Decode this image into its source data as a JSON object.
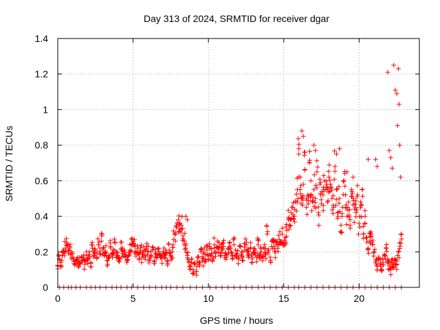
{
  "chart_data": {
    "type": "scatter",
    "title": "Day 313 of 2024, SRMTID for receiver dgar",
    "xlabel": "GPS time / hours",
    "ylabel": "SRMTID / TECUs",
    "xlim": [
      0,
      24
    ],
    "ylim": [
      0,
      1.4
    ],
    "grid": true,
    "marker": "+",
    "series": [
      {
        "name": "SRMTID",
        "color": "#ff0000",
        "note": "Points are sampled roughly every 0.1 h; values traced from the plot envelope. Many additional points lie along y = 0.",
        "x": [
          0.0,
          0.1,
          0.2,
          0.3,
          0.4,
          0.5,
          0.6,
          0.7,
          0.8,
          0.9,
          1.0,
          1.1,
          1.2,
          1.3,
          1.4,
          1.5,
          1.6,
          1.7,
          1.8,
          1.9,
          2.0,
          2.1,
          2.2,
          2.3,
          2.4,
          2.5,
          2.6,
          2.7,
          2.8,
          2.9,
          3.0,
          3.1,
          3.2,
          3.3,
          3.4,
          3.5,
          3.6,
          3.7,
          3.8,
          3.9,
          4.0,
          4.1,
          4.2,
          4.3,
          4.4,
          4.5,
          4.6,
          4.7,
          4.8,
          4.9,
          5.0,
          5.1,
          5.2,
          5.3,
          5.4,
          5.5,
          5.6,
          5.7,
          5.8,
          5.9,
          6.0,
          6.1,
          6.2,
          6.3,
          6.4,
          6.5,
          6.6,
          6.7,
          6.8,
          6.9,
          7.0,
          7.1,
          7.2,
          7.3,
          7.4,
          7.5,
          7.6,
          7.7,
          7.8,
          7.9,
          8.0,
          8.1,
          8.2,
          8.3,
          8.4,
          8.5,
          8.6,
          8.7,
          8.8,
          8.9,
          9.0,
          9.1,
          9.2,
          9.3,
          9.4,
          9.5,
          9.6,
          9.7,
          9.8,
          9.9,
          10.0,
          10.1,
          10.2,
          10.3,
          10.4,
          10.5,
          10.6,
          10.7,
          10.8,
          10.9,
          11.0,
          11.1,
          11.2,
          11.3,
          11.4,
          11.5,
          11.6,
          11.7,
          11.8,
          11.9,
          12.0,
          12.1,
          12.2,
          12.3,
          12.4,
          12.5,
          12.6,
          12.7,
          12.8,
          12.9,
          13.0,
          13.1,
          13.2,
          13.3,
          13.4,
          13.5,
          13.6,
          13.7,
          13.8,
          13.9,
          14.0,
          14.1,
          14.2,
          14.3,
          14.4,
          14.5,
          14.6,
          14.7,
          14.8,
          14.9,
          15.0,
          15.1,
          15.2,
          15.3,
          15.4,
          15.5,
          15.6,
          15.7,
          15.8,
          15.9,
          16.0,
          16.1,
          16.2,
          16.3,
          16.4,
          16.5,
          16.6,
          16.7,
          16.8,
          16.9,
          17.0,
          17.1,
          17.2,
          17.3,
          17.4,
          17.5,
          17.6,
          17.7,
          17.8,
          17.9,
          18.0,
          18.1,
          18.2,
          18.3,
          18.4,
          18.5,
          18.6,
          18.7,
          18.8,
          18.9,
          19.0,
          19.1,
          19.2,
          19.3,
          19.4,
          19.5,
          19.6,
          19.7,
          19.8,
          19.9,
          20.0,
          20.1,
          20.2,
          20.3,
          20.4,
          20.5,
          20.6,
          20.7,
          20.8,
          20.9,
          21.0,
          21.1,
          21.2,
          21.3,
          21.4,
          21.5,
          21.6,
          21.7,
          21.8,
          21.9,
          22.0,
          22.1,
          22.2,
          22.3,
          22.4,
          22.5,
          22.6,
          22.7,
          22.8
        ],
        "y": [
          0.12,
          0.16,
          0.14,
          0.18,
          0.2,
          0.22,
          0.25,
          0.21,
          0.23,
          0.19,
          0.17,
          0.15,
          0.13,
          0.16,
          0.12,
          0.14,
          0.15,
          0.17,
          0.13,
          0.18,
          0.16,
          0.2,
          0.14,
          0.22,
          0.18,
          0.21,
          0.17,
          0.24,
          0.19,
          0.26,
          0.22,
          0.18,
          0.2,
          0.15,
          0.17,
          0.23,
          0.19,
          0.21,
          0.25,
          0.2,
          0.18,
          0.16,
          0.22,
          0.19,
          0.2,
          0.17,
          0.15,
          0.18,
          0.21,
          0.24,
          0.26,
          0.23,
          0.2,
          0.22,
          0.19,
          0.21,
          0.17,
          0.2,
          0.18,
          0.23,
          0.2,
          0.16,
          0.18,
          0.21,
          0.15,
          0.19,
          0.17,
          0.22,
          0.18,
          0.16,
          0.2,
          0.17,
          0.19,
          0.15,
          0.21,
          0.18,
          0.2,
          0.27,
          0.3,
          0.34,
          0.38,
          0.33,
          0.35,
          0.29,
          0.26,
          0.22,
          0.18,
          0.14,
          0.12,
          0.16,
          0.1,
          0.13,
          0.09,
          0.17,
          0.12,
          0.2,
          0.15,
          0.19,
          0.16,
          0.21,
          0.18,
          0.22,
          0.19,
          0.17,
          0.24,
          0.2,
          0.26,
          0.22,
          0.18,
          0.21,
          0.23,
          0.19,
          0.17,
          0.22,
          0.25,
          0.2,
          0.18,
          0.24,
          0.21,
          0.19,
          0.16,
          0.23,
          0.2,
          0.17,
          0.21,
          0.24,
          0.2,
          0.18,
          0.22,
          0.16,
          0.19,
          0.21,
          0.17,
          0.24,
          0.18,
          0.2,
          0.15,
          0.22,
          0.19,
          0.3,
          0.21,
          0.17,
          0.23,
          0.26,
          0.2,
          0.24,
          0.22,
          0.27,
          0.25,
          0.3,
          0.24,
          0.28,
          0.32,
          0.38,
          0.35,
          0.42,
          0.45,
          0.4,
          0.48,
          0.55,
          0.75,
          0.62,
          0.5,
          0.58,
          0.66,
          0.45,
          0.52,
          0.7,
          0.6,
          0.48,
          0.55,
          0.5,
          0.65,
          0.42,
          0.58,
          0.47,
          0.52,
          0.6,
          0.55,
          0.48,
          0.62,
          0.58,
          0.5,
          0.45,
          0.68,
          0.55,
          0.4,
          0.5,
          0.35,
          0.45,
          0.6,
          0.52,
          0.4,
          0.48,
          0.38,
          0.55,
          0.5,
          0.44,
          0.42,
          0.52,
          0.36,
          0.48,
          0.55,
          0.3,
          0.4,
          0.28,
          0.22,
          0.26,
          0.3,
          0.24,
          0.2,
          0.15,
          0.12,
          0.17,
          0.13,
          0.1,
          0.14,
          0.18,
          0.22,
          0.16,
          0.12,
          0.1,
          0.14,
          0.11,
          0.15,
          0.13,
          0.2,
          0.25,
          0.3
        ],
        "outliers_x": [
          8.5,
          8.6,
          16.2,
          16.3,
          16.4,
          16.0,
          17.0,
          17.1,
          18.5,
          18.7,
          19.2,
          19.6,
          20.6,
          21.1,
          21.2,
          21.9,
          22.0,
          22.1,
          22.2,
          22.3,
          22.4,
          22.5,
          22.55,
          22.6,
          22.65,
          22.7,
          22.75
        ],
        "outliers_y": [
          0.4,
          0.38,
          0.88,
          0.85,
          0.76,
          0.78,
          0.8,
          0.77,
          0.75,
          0.78,
          0.65,
          0.62,
          0.72,
          0.72,
          0.68,
          1.21,
          0.77,
          0.73,
          0.67,
          1.25,
          1.11,
          1.09,
          0.91,
          1.23,
          1.03,
          0.8,
          0.62
        ],
        "zero_x": [
          0.1,
          0.4,
          0.7,
          0.9,
          1.2,
          1.5,
          1.9,
          2.2,
          2.5,
          2.8,
          3.2,
          3.6,
          3.9,
          4.2,
          4.6,
          4.9,
          5.3,
          5.7,
          6.1,
          6.5,
          6.9,
          7.2,
          7.5,
          7.9,
          8.3,
          8.8,
          9.2,
          9.6,
          10.1,
          10.5,
          10.9,
          11.3,
          11.7,
          12.1,
          12.5,
          12.9,
          13.3,
          13.7,
          14.1,
          14.5,
          14.9,
          15.3,
          15.7,
          16.0,
          16.4,
          16.8,
          17.2,
          17.6,
          18.0,
          18.4,
          18.8,
          19.2,
          19.6,
          20.0,
          20.4,
          20.8,
          21.2,
          21.6,
          22.0,
          22.4,
          22.8
        ]
      }
    ],
    "xticks": [
      0,
      5,
      10,
      15,
      20
    ],
    "xtick_labels": [
      "0",
      "5",
      "10",
      "15",
      "20"
    ],
    "yticks": [
      0,
      0.2,
      0.4,
      0.6,
      0.8,
      1.0,
      1.2,
      1.4
    ],
    "ytick_labels": [
      "0",
      "0.2",
      "0.4",
      "0.6",
      "0.8",
      "1",
      "1.2",
      "1.4"
    ]
  }
}
